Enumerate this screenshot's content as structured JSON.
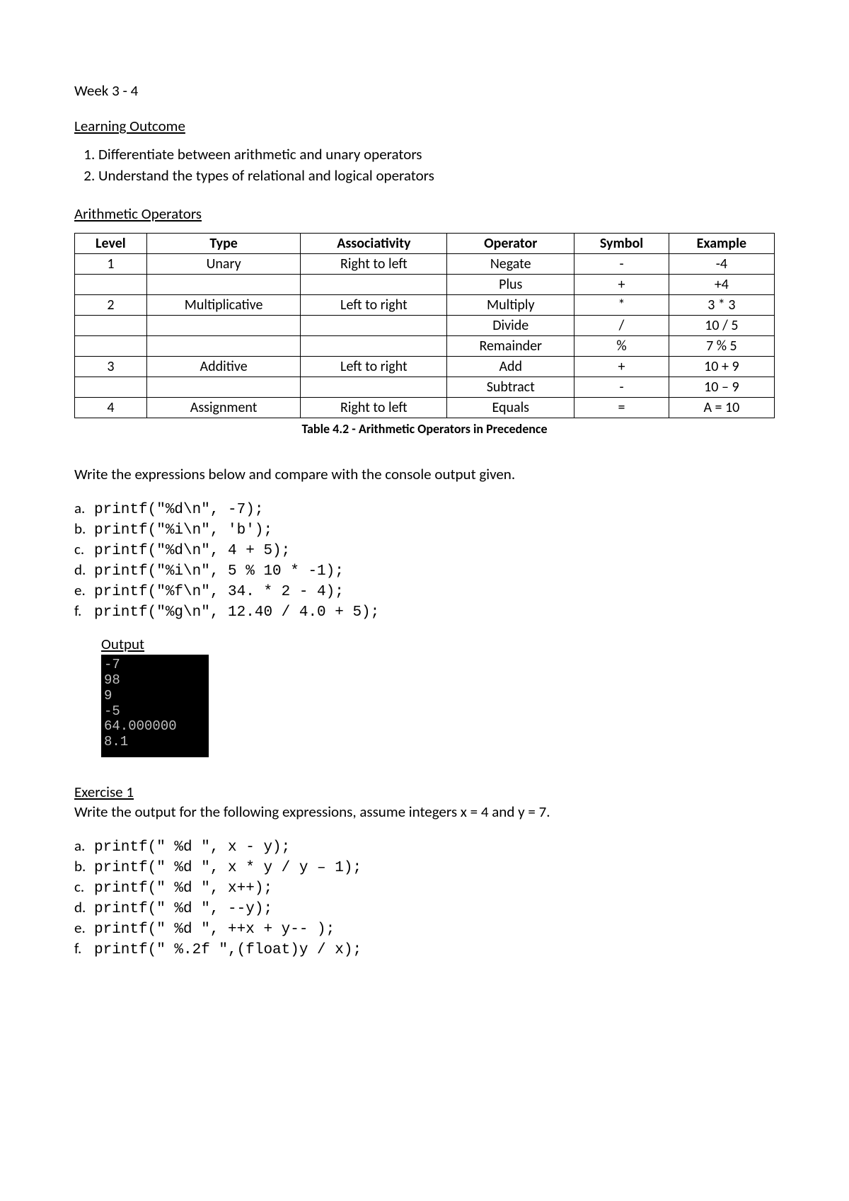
{
  "title": "Week 3 - 4",
  "learning_outcome": {
    "heading": "Learning Outcome",
    "items": [
      "Differentiate between arithmetic and unary operators",
      "Understand the types of relational and logical operators"
    ]
  },
  "arithmetic_section": {
    "heading": "Arithmetic Operators",
    "table": {
      "columns": [
        "Level",
        "Type",
        "Associativity",
        "Operator",
        "Symbol",
        "Example"
      ],
      "rows": [
        [
          "1",
          "Unary",
          "Right to left",
          "Negate",
          "-",
          "-4"
        ],
        [
          "",
          "",
          "",
          "Plus",
          "+",
          "+4"
        ],
        [
          "2",
          "Multiplicative",
          "Left to right",
          "Multiply",
          "*",
          "3 * 3"
        ],
        [
          "",
          "",
          "",
          "Divide",
          "/",
          "10 / 5"
        ],
        [
          "",
          "",
          "",
          "Remainder",
          "%",
          "7 % 5"
        ],
        [
          "3",
          "Additive",
          "Left to right",
          "Add",
          "+",
          "10 + 9"
        ],
        [
          "",
          "",
          "",
          "Subtract",
          "-",
          "10 – 9"
        ],
        [
          "4",
          "Assignment",
          "Right to left",
          "Equals",
          "=",
          "A = 10"
        ]
      ],
      "caption": "Table 4.2 - Arithmetic Operators in Precedence"
    }
  },
  "expressions": {
    "intro": "Write the expressions below and compare with the console output given.",
    "items": [
      {
        "label": "a.",
        "code": "printf(\"%d\\n\", -7);"
      },
      {
        "label": "b.",
        "code": "printf(\"%i\\n\", 'b');"
      },
      {
        "label": "c.",
        "code": "printf(\"%d\\n\", 4 + 5);"
      },
      {
        "label": "d.",
        "code": "printf(\"%i\\n\", 5 % 10 * -1);"
      },
      {
        "label": "e.",
        "code": "printf(\"%f\\n\", 34. * 2 - 4);"
      },
      {
        "label": "f.",
        "code": "printf(\"%g\\n\", 12.40 / 4.0 + 5);"
      }
    ],
    "output_label": "Output",
    "console_lines": [
      "-7",
      "98",
      "9",
      "-5",
      "64.000000",
      "8.1"
    ]
  },
  "exercise1": {
    "heading": "Exercise 1",
    "intro": "Write the output for the following expressions, assume integers x = 4 and y = 7.",
    "items": [
      {
        "label": "a.",
        "code": "printf(\" %d \", x - y);"
      },
      {
        "label": "b.",
        "code": "printf(\" %d \", x * y / y – 1);"
      },
      {
        "label": "c.",
        "code": "printf(\" %d \", x++);"
      },
      {
        "label": "d.",
        "code": "printf(\" %d \", --y);"
      },
      {
        "label": "e.",
        "code": "printf(\" %d \", ++x + y-- );"
      },
      {
        "label": "f.",
        "code": "printf(\" %.2f \",(float)y / x);"
      }
    ]
  },
  "colors": {
    "page_bg": "#ffffff",
    "text": "#000000",
    "console_bg": "#000000",
    "console_fg": "#c0c0c0",
    "border": "#000000"
  }
}
